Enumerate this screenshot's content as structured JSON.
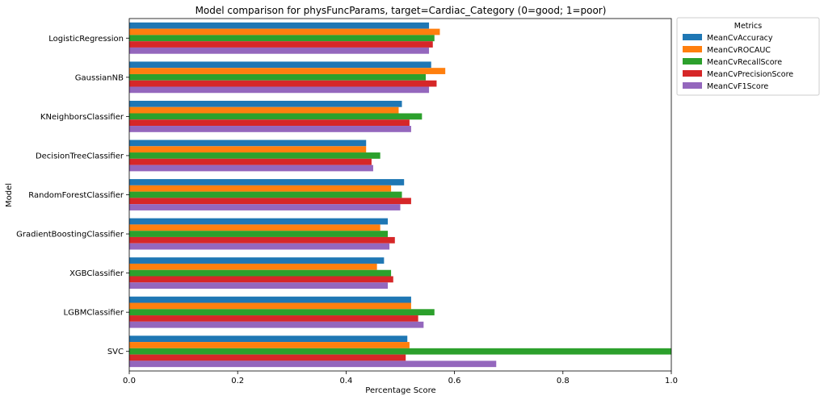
{
  "chart_data": {
    "type": "bar",
    "orientation": "horizontal",
    "title": "Model comparison for physFuncParams, target=Cardiac_Category (0=good; 1=poor)",
    "xlabel": "Percentage Score",
    "ylabel": "Model",
    "xlim": [
      0,
      1.0
    ],
    "xticks": [
      "0.0",
      "0.2",
      "0.4",
      "0.6",
      "0.8",
      "1.0"
    ],
    "grid": false,
    "legend": {
      "title": "Metrics",
      "placement": "outside-top-right"
    },
    "categories": [
      "LogisticRegression",
      "GaussianNB",
      "KNeighborsClassifier",
      "DecisionTreeClassifier",
      "RandomForestClassifier",
      "GradientBoostingClassifier",
      "XGBClassifier",
      "LGBMClassifier",
      "SVC"
    ],
    "series": [
      {
        "name": "MeanCvAccuracy",
        "color": "#1f77b4",
        "values": [
          0.553,
          0.557,
          0.503,
          0.437,
          0.507,
          0.477,
          0.47,
          0.52,
          0.513
        ]
      },
      {
        "name": "MeanCvROCAUC",
        "color": "#ff7f0e",
        "values": [
          0.573,
          0.583,
          0.497,
          0.437,
          0.483,
          0.463,
          0.457,
          0.52,
          0.517
        ]
      },
      {
        "name": "MeanCvRecallScore",
        "color": "#2ca02c",
        "values": [
          0.563,
          0.547,
          0.54,
          0.463,
          0.503,
          0.477,
          0.483,
          0.563,
          1.0
        ]
      },
      {
        "name": "MeanCvPrecisionScore",
        "color": "#d62728",
        "values": [
          0.56,
          0.567,
          0.517,
          0.447,
          0.52,
          0.49,
          0.487,
          0.533,
          0.51
        ]
      },
      {
        "name": "MeanCvF1Score",
        "color": "#9467bd",
        "values": [
          0.553,
          0.553,
          0.52,
          0.45,
          0.5,
          0.48,
          0.477,
          0.543,
          0.677
        ]
      }
    ]
  }
}
